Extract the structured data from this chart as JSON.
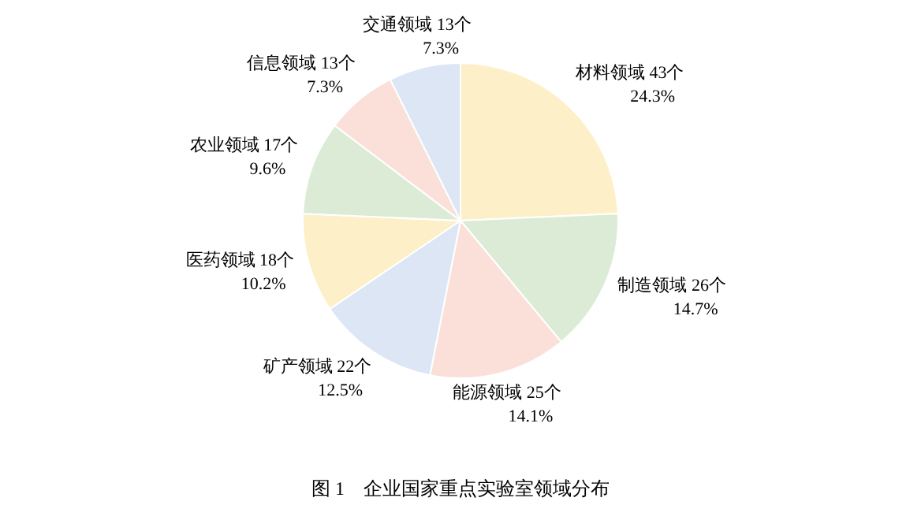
{
  "chart_data": {
    "type": "pie",
    "title": "图 1　企业国家重点实验室领域分布",
    "categories": [
      "材料领域",
      "制造领域",
      "能源领域",
      "矿产领域",
      "医药领域",
      "农业领域",
      "信息领域",
      "交通领域"
    ],
    "values": [
      43,
      26,
      25,
      22,
      18,
      17,
      13,
      13
    ],
    "value_labels": [
      "43个 24.3%",
      "26个 14.7%",
      "25个 14.1%",
      "22个 12.5%",
      "18个 10.2%",
      "17个 9.6%",
      "13个 7.3%",
      "13个 7.3%"
    ],
    "colors": [
      "#fdf0c8",
      "#dcebd6",
      "#fbe0da",
      "#dce6f4",
      "#fdf0c8",
      "#dcebd6",
      "#fbe0da",
      "#dce6f4"
    ]
  }
}
